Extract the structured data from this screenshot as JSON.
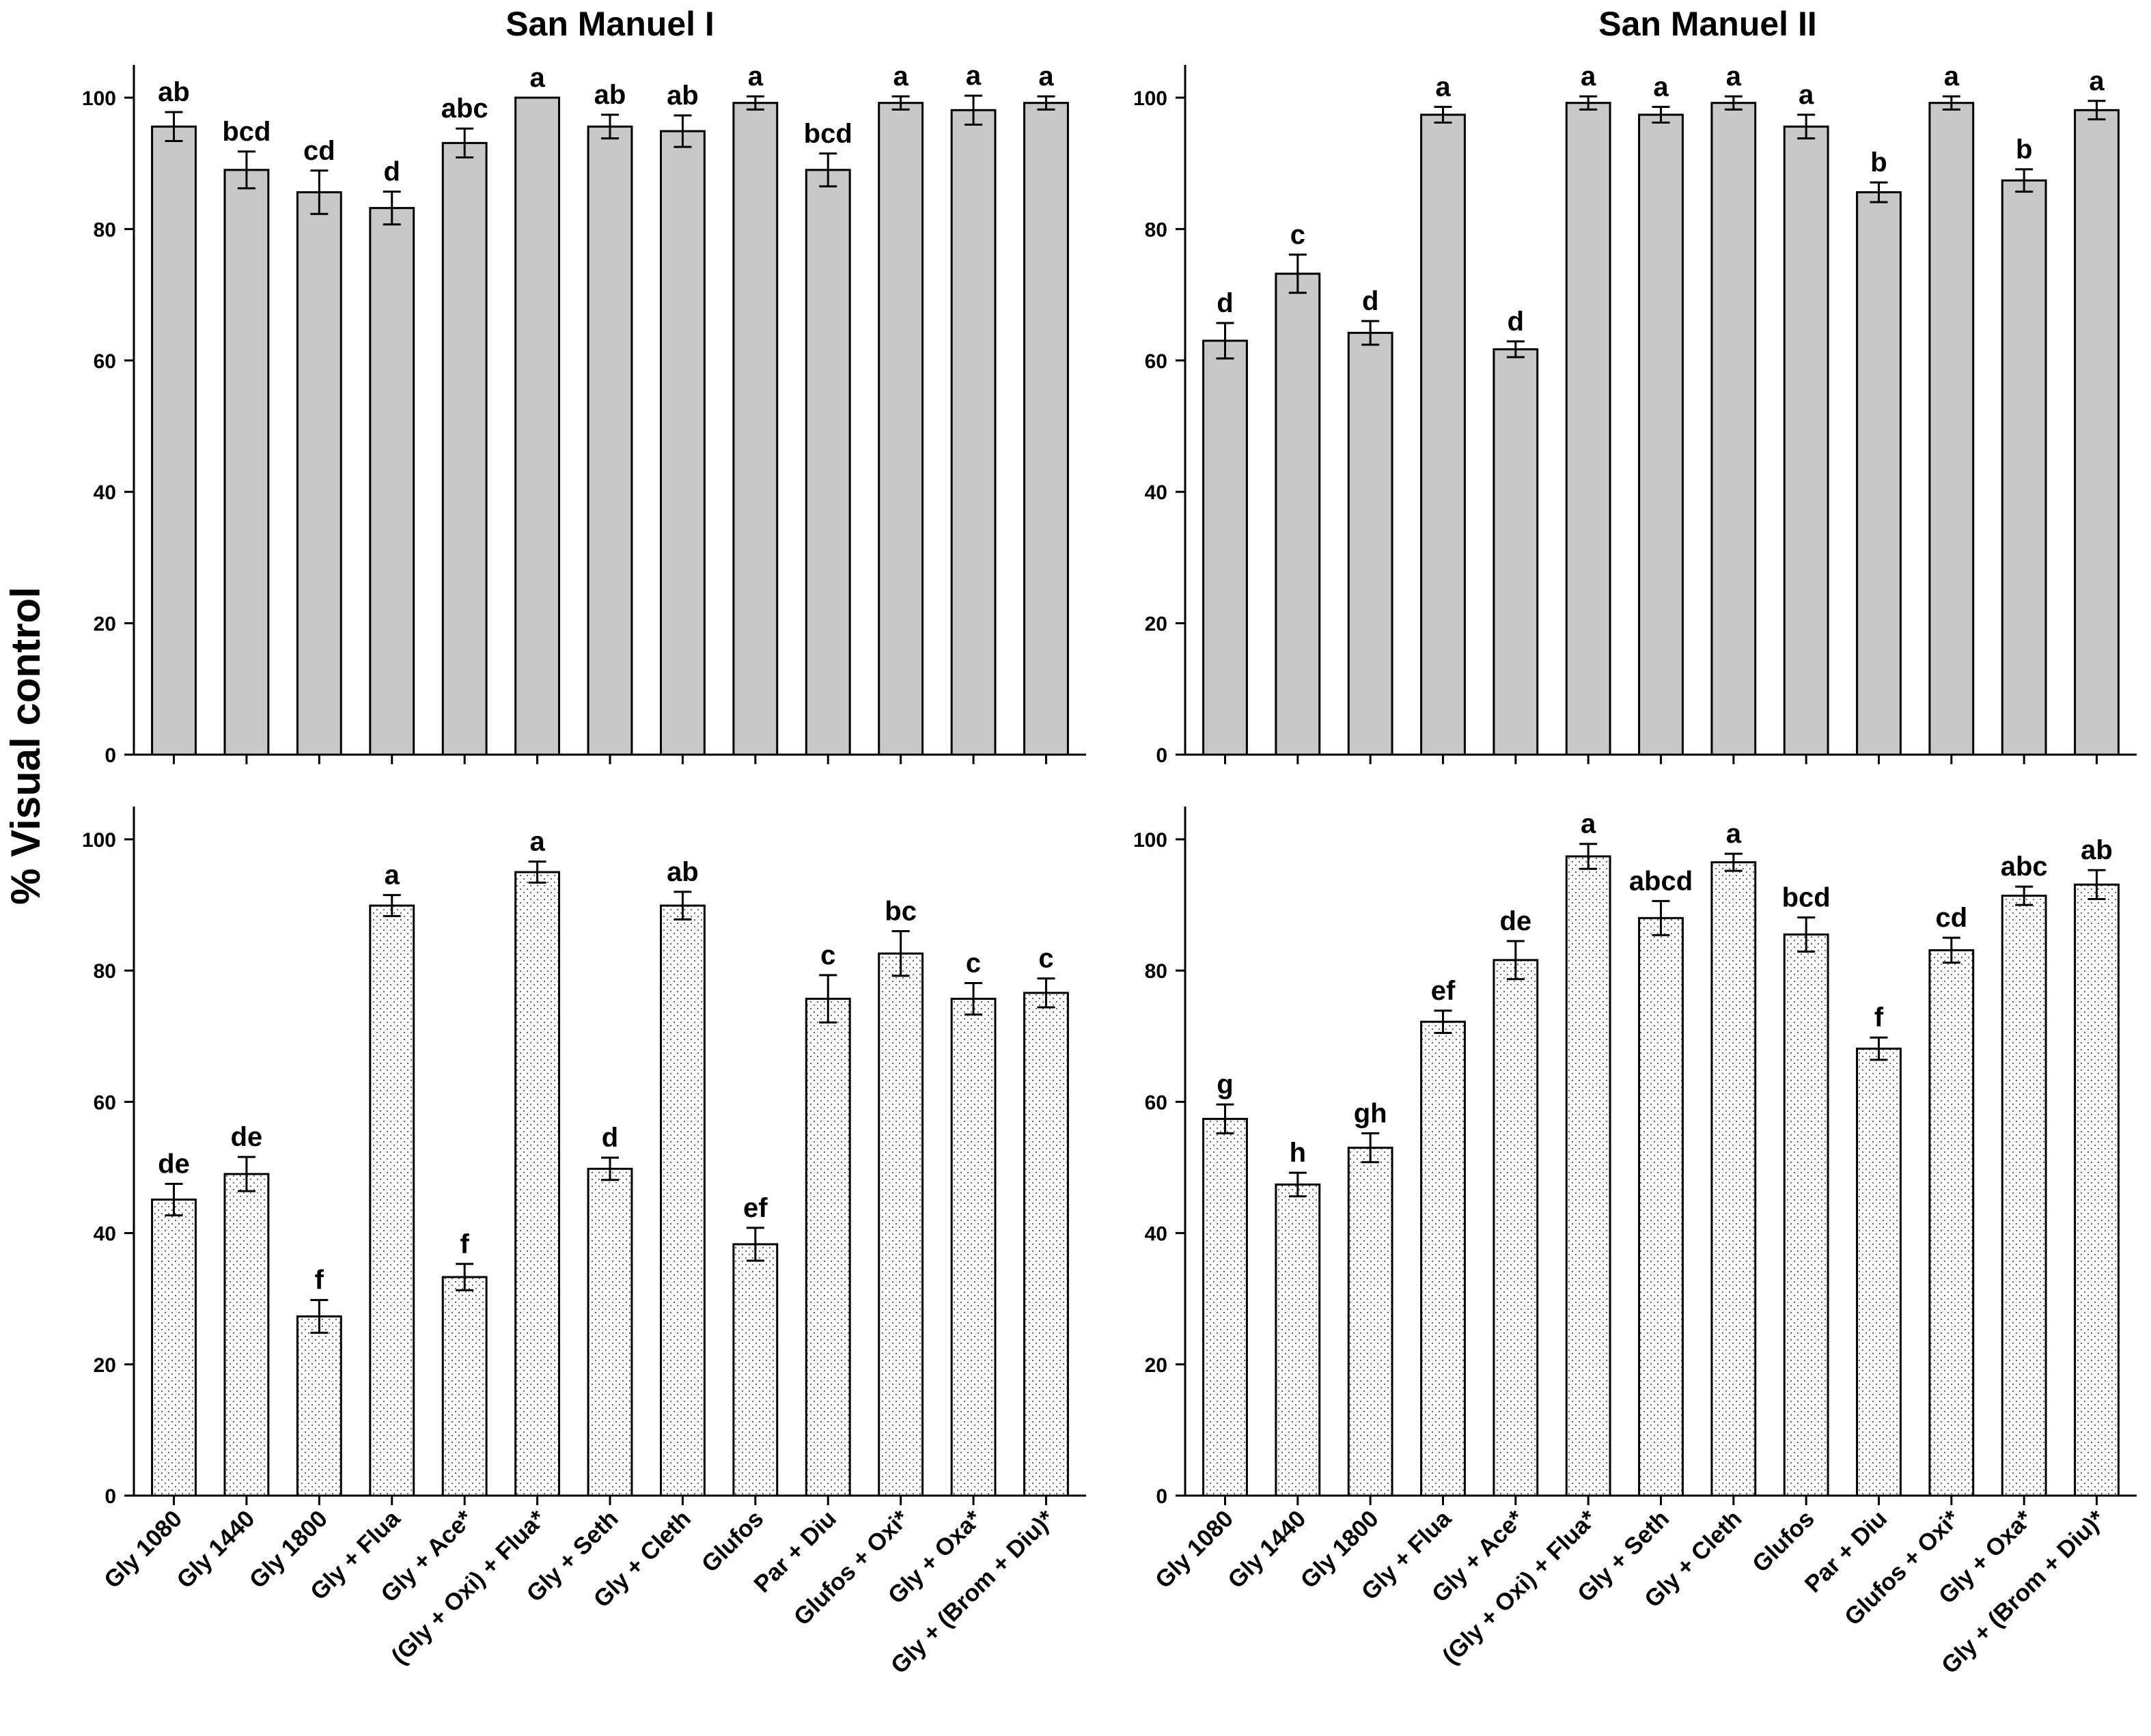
{
  "figure": {
    "ylabel": "% Visual control",
    "colors": {
      "top_bar_fill": "#c8c8c8",
      "bottom_bar_fill": "#ffffff",
      "stroke": "#000000",
      "dot": "#555555"
    }
  },
  "chart_data": [
    {
      "type": "bar",
      "id": "top-left",
      "title": "San Manuel I",
      "xlabel": "",
      "ylabel": "% Visual control",
      "ylim": [
        0,
        100
      ],
      "yticks": [
        0,
        20,
        40,
        60,
        80,
        100
      ],
      "categories": [
        "Gly 1080",
        "Gly 1440",
        "Gly 1800",
        "Gly + Flua",
        "Gly + Ace*",
        "(Gly + Oxi) + Flua*",
        "Gly + Seth",
        "Gly + Cleth",
        "Glufos",
        "Par + Diu",
        "Glufos + Oxi*",
        "Gly + Oxa*",
        "Gly + (Brom + Diu)*"
      ],
      "values": [
        95.6,
        89.0,
        85.6,
        83.2,
        93.1,
        100,
        95.6,
        94.9,
        99.2,
        89.0,
        99.2,
        98.1,
        99.2
      ],
      "errors": [
        2.2,
        2.8,
        3.3,
        2.5,
        2.2,
        0,
        1.8,
        2.4,
        1.0,
        2.5,
        1.0,
        2.2,
        1.0
      ],
      "letters": [
        "ab",
        "bcd",
        "cd",
        "d",
        "abc",
        "a",
        "ab",
        "ab",
        "a",
        "bcd",
        "a",
        "a",
        "a"
      ]
    },
    {
      "type": "bar",
      "id": "top-right",
      "title": "San Manuel II",
      "xlabel": "",
      "ylabel": "",
      "ylim": [
        0,
        100
      ],
      "yticks": [
        0,
        20,
        40,
        60,
        80,
        100
      ],
      "categories": [
        "Gly 1080",
        "Gly 1440",
        "Gly 1800",
        "Gly + Flua",
        "Gly + Ace*",
        "(Gly + Oxi) + Flua*",
        "Gly + Seth",
        "Gly + Cleth",
        "Glufos",
        "Par + Diu",
        "Glufos + Oxi*",
        "Gly + Oxa*",
        "Gly + (Brom + Diu)*"
      ],
      "values": [
        63.0,
        73.2,
        64.2,
        97.4,
        61.7,
        99.2,
        97.4,
        99.2,
        95.6,
        85.6,
        99.2,
        87.4,
        98.1
      ],
      "errors": [
        2.7,
        2.9,
        1.8,
        1.2,
        1.2,
        1.0,
        1.2,
        1.0,
        1.8,
        1.5,
        1.0,
        1.7,
        1.4
      ],
      "letters": [
        "d",
        "c",
        "d",
        "a",
        "d",
        "a",
        "a",
        "a",
        "a",
        "b",
        "a",
        "b",
        "a"
      ]
    },
    {
      "type": "bar",
      "id": "bottom-left",
      "title": "",
      "xlabel": "",
      "ylabel": "% Visual control",
      "ylim": [
        0,
        100
      ],
      "yticks": [
        0,
        20,
        40,
        60,
        80,
        100
      ],
      "categories": [
        "Gly 1080",
        "Gly 1440",
        "Gly 1800",
        "Gly + Flua",
        "Gly + Ace*",
        "(Gly + Oxi) + Flua*",
        "Gly + Seth",
        "Gly + Cleth",
        "Glufos",
        "Par + Diu",
        "Glufos + Oxi*",
        "Gly + Oxa*",
        "Gly + (Brom + Diu)*"
      ],
      "values": [
        45.1,
        49.0,
        27.3,
        89.9,
        33.3,
        95.0,
        49.8,
        89.9,
        38.3,
        75.7,
        82.6,
        75.7,
        76.6
      ],
      "errors": [
        2.4,
        2.6,
        2.5,
        1.6,
        2.0,
        1.6,
        1.7,
        2.1,
        2.5,
        3.6,
        3.4,
        2.4,
        2.2
      ],
      "letters": [
        "de",
        "de",
        "f",
        "a",
        "f",
        "a",
        "d",
        "ab",
        "ef",
        "c",
        "bc",
        "c",
        "c"
      ]
    },
    {
      "type": "bar",
      "id": "bottom-right",
      "title": "",
      "xlabel": "",
      "ylabel": "",
      "ylim": [
        0,
        100
      ],
      "yticks": [
        0,
        20,
        40,
        60,
        80,
        100
      ],
      "categories": [
        "Gly 1080",
        "Gly 1440",
        "Gly 1800",
        "Gly + Flua",
        "Gly + Ace*",
        "(Gly + Oxi) + Flua*",
        "Gly + Seth",
        "Gly + Cleth",
        "Glufos",
        "Par + Diu",
        "Glufos + Oxi*",
        "Gly + Oxa*",
        "Gly + (Brom + Diu)*"
      ],
      "values": [
        57.4,
        47.4,
        53.0,
        72.2,
        81.6,
        97.4,
        88.0,
        96.5,
        85.5,
        68.1,
        83.1,
        91.4,
        93.1
      ],
      "errors": [
        2.2,
        1.8,
        2.2,
        1.7,
        2.9,
        1.9,
        2.6,
        1.3,
        2.6,
        1.7,
        1.9,
        1.4,
        2.2
      ],
      "letters": [
        "g",
        "h",
        "gh",
        "ef",
        "de",
        "a",
        "abcd",
        "a",
        "bcd",
        "f",
        "cd",
        "abc",
        "ab"
      ]
    }
  ]
}
